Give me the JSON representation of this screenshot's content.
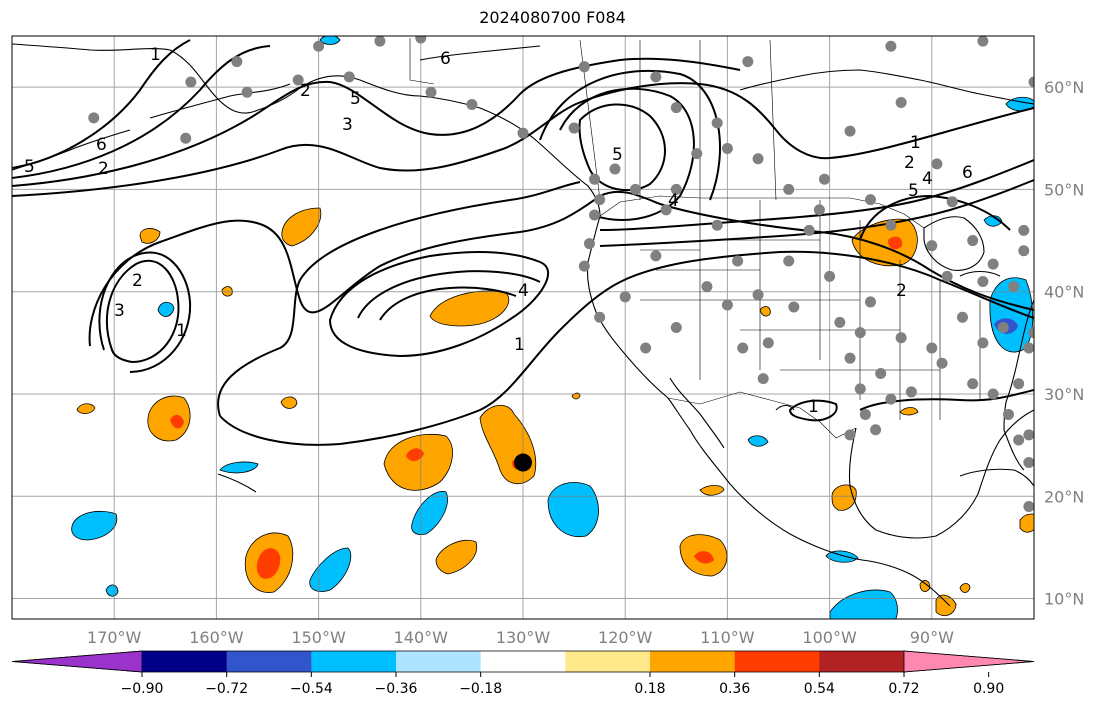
{
  "title": "2024080700 F084",
  "map": {
    "lon_range": [
      -180,
      -80
    ],
    "lat_range": [
      8,
      65
    ],
    "lon_ticks": [
      {
        "value": -170,
        "label": "170°W"
      },
      {
        "value": -160,
        "label": "160°W"
      },
      {
        "value": -150,
        "label": "150°W"
      },
      {
        "value": -140,
        "label": "140°W"
      },
      {
        "value": -130,
        "label": "130°W"
      },
      {
        "value": -120,
        "label": "120°W"
      },
      {
        "value": -110,
        "label": "110°W"
      },
      {
        "value": -100,
        "label": "100°W"
      },
      {
        "value": -90,
        "label": "90°W"
      }
    ],
    "lat_ticks": [
      {
        "value": 10,
        "label": "10°N"
      },
      {
        "value": 20,
        "label": "20°N"
      },
      {
        "value": 30,
        "label": "30°N"
      },
      {
        "value": 40,
        "label": "40°N"
      },
      {
        "value": 50,
        "label": "50°N"
      },
      {
        "value": 60,
        "label": "60°N"
      }
    ],
    "grid": true,
    "contour_labels": [
      "1",
      "2",
      "3",
      "4",
      "5",
      "6"
    ]
  },
  "colorbar": {
    "colors": [
      "#9933cc",
      "#000088",
      "#3355cc",
      "#00bfff",
      "#aee4ff",
      "#ffffff",
      "#ffe98a",
      "#ffa500",
      "#ff3d00",
      "#b22222",
      "#ff88b0"
    ],
    "ticks": [
      "−0.90",
      "−0.72",
      "−0.54",
      "−0.36",
      "−0.18",
      "0.18",
      "0.36",
      "0.54",
      "0.72",
      "0.90"
    ]
  },
  "stations": [
    [
      -162.5,
      60.5
    ],
    [
      -158,
      62.5
    ],
    [
      -150,
      64
    ],
    [
      -144,
      64.5
    ],
    [
      -140,
      64.8
    ],
    [
      -172,
      57
    ],
    [
      -163,
      55
    ],
    [
      -157,
      59.5
    ],
    [
      -152,
      60.7
    ],
    [
      -147,
      61
    ],
    [
      -139,
      59.5
    ],
    [
      -135,
      58.3
    ],
    [
      -130,
      55.5
    ],
    [
      -123,
      51
    ],
    [
      -122.5,
      49
    ],
    [
      -123,
      47.5
    ],
    [
      -123.5,
      44.7
    ],
    [
      -124,
      42.5
    ],
    [
      -122.5,
      37.5
    ],
    [
      -120,
      39.5
    ],
    [
      -118,
      34.5
    ],
    [
      -117,
      43.5
    ],
    [
      -116,
      48
    ],
    [
      -115,
      36.5
    ],
    [
      -111,
      46.5
    ],
    [
      -112,
      40.5
    ],
    [
      -110,
      38.7
    ],
    [
      -109,
      43
    ],
    [
      -108.5,
      34.5
    ],
    [
      -106.5,
      31.5
    ],
    [
      -106,
      35
    ],
    [
      -107,
      39.7
    ],
    [
      -103.5,
      38.5
    ],
    [
      -104,
      43
    ],
    [
      -102,
      46
    ],
    [
      -101,
      48
    ],
    [
      -100,
      41.5
    ],
    [
      -99,
      37
    ],
    [
      -98,
      33.5
    ],
    [
      -97,
      36
    ],
    [
      -96,
      39
    ],
    [
      -97,
      30.5
    ],
    [
      -95,
      32
    ],
    [
      -93,
      35.5
    ],
    [
      -90,
      34.5
    ],
    [
      -94,
      29.5
    ],
    [
      -95.5,
      26.5
    ],
    [
      -96.5,
      28
    ],
    [
      -98,
      26
    ],
    [
      -92,
      30.2
    ],
    [
      -89,
      33
    ],
    [
      -86,
      31
    ],
    [
      -84,
      30
    ],
    [
      -82.5,
      28
    ],
    [
      -81.5,
      25.5
    ],
    [
      -85,
      35
    ],
    [
      -87,
      37.5
    ],
    [
      -88.5,
      41.5
    ],
    [
      -84,
      42.7
    ],
    [
      -82,
      40.5
    ],
    [
      -90,
      44.5
    ],
    [
      -94,
      46.5
    ],
    [
      -96,
      49
    ],
    [
      -100.5,
      51
    ],
    [
      -104,
      50
    ],
    [
      -107,
      53
    ],
    [
      -110,
      54
    ],
    [
      -113,
      53.5
    ],
    [
      -115,
      50
    ],
    [
      -119,
      50
    ],
    [
      -121,
      52
    ],
    [
      -125,
      56
    ],
    [
      -115,
      58
    ],
    [
      -111,
      56.5
    ],
    [
      -117,
      61
    ],
    [
      -124,
      62
    ],
    [
      -108,
      62.5
    ],
    [
      -94,
      64
    ],
    [
      -85,
      64.5
    ],
    [
      -80,
      60.5
    ],
    [
      -93,
      58.5
    ],
    [
      -98,
      55.7
    ],
    [
      -89.5,
      52.5
    ],
    [
      -88,
      48.8
    ],
    [
      -86,
      45
    ],
    [
      -85,
      41
    ],
    [
      -83,
      36.5
    ],
    [
      -80.5,
      34.5
    ],
    [
      -81.5,
      31
    ],
    [
      -80.5,
      26
    ],
    [
      -80.5,
      19
    ],
    [
      -81,
      46
    ],
    [
      -81,
      44
    ],
    [
      -79,
      38
    ],
    [
      -80,
      36
    ],
    [
      -79.5,
      32.5
    ],
    [
      -80.5,
      23.3
    ]
  ],
  "marker": {
    "lon": -130,
    "lat": 23.3
  }
}
